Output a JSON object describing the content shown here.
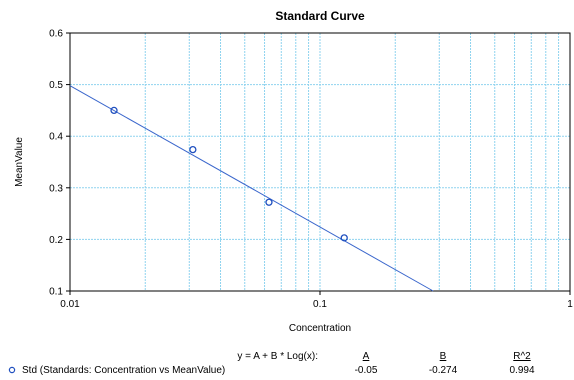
{
  "chart_data": {
    "type": "scatter",
    "title": "Standard Curve",
    "xlabel": "Concentration",
    "ylabel": "MeanValue",
    "xscale": "log",
    "xlim": [
      0.01,
      1
    ],
    "ylim": [
      0.1,
      0.6
    ],
    "x_ticks": [
      "0.01",
      "0.1",
      "1"
    ],
    "y_ticks": [
      "0.1",
      "0.2",
      "0.3",
      "0.4",
      "0.5",
      "0.6"
    ],
    "grid": true,
    "series": [
      {
        "name": "Std (Standards: Concentration vs MeanValue)",
        "x": [
          0.015,
          0.031,
          0.0625,
          0.125
        ],
        "y": [
          0.45,
          0.374,
          0.272,
          0.203
        ],
        "color": "#1f4fbf"
      }
    ],
    "fit": {
      "equation": "y = A + B * Log(x):",
      "headers": [
        "A",
        "B",
        "R^2"
      ],
      "values": [
        "-0.05",
        "-0.274",
        "0.994"
      ],
      "A": -0.05,
      "B": -0.274,
      "line_color": "#3a66cc"
    },
    "legend_placement": "bottom"
  }
}
